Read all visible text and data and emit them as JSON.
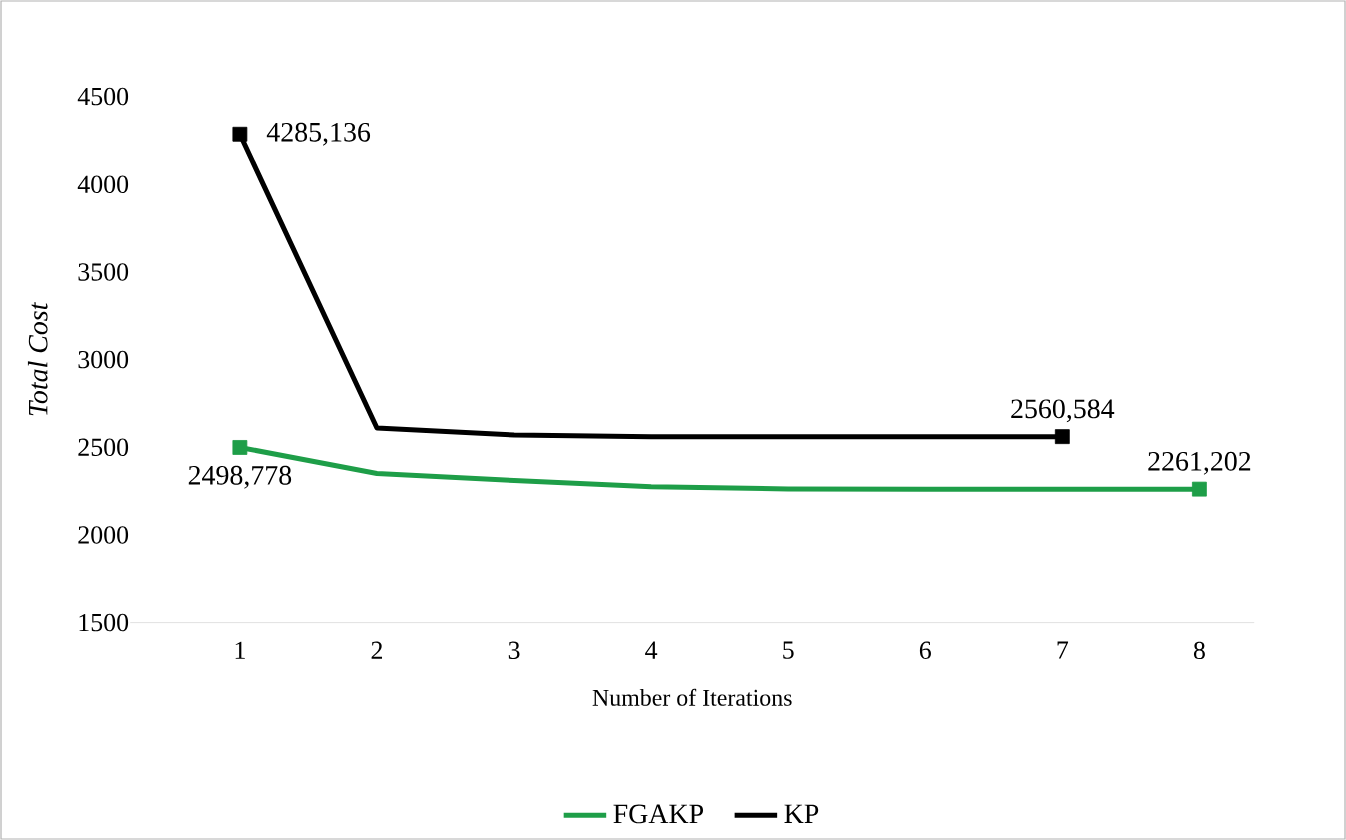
{
  "chart_data": {
    "type": "line",
    "xlabel": "Number of Iterations",
    "ylabel": "*Total Cost*",
    "categories": [
      "1",
      "2",
      "3",
      "4",
      "5",
      "6",
      "7",
      "8"
    ],
    "series": [
      {
        "name": "FGAKP",
        "color": "#1e9e48",
        "values": [
          2498.778,
          2350,
          2310,
          2275,
          2262,
          2261,
          2261,
          2261.202
        ],
        "value_labels": [
          "2498,778",
          null,
          null,
          null,
          null,
          null,
          null,
          "2261,202"
        ]
      },
      {
        "name": "KP",
        "color": "#000000",
        "values": [
          4285.136,
          2610,
          2570,
          2560,
          2560,
          2560,
          2560.584,
          null
        ],
        "value_labels": [
          "4285,136",
          null,
          null,
          null,
          null,
          null,
          "2560,584",
          null
        ]
      }
    ],
    "ylim": [
      1500,
      4500
    ],
    "yticks": [
      1500,
      2000,
      2500,
      3000,
      3500,
      4000,
      4500
    ],
    "grid": false,
    "legend": "bottom",
    "line_style": "solid"
  }
}
